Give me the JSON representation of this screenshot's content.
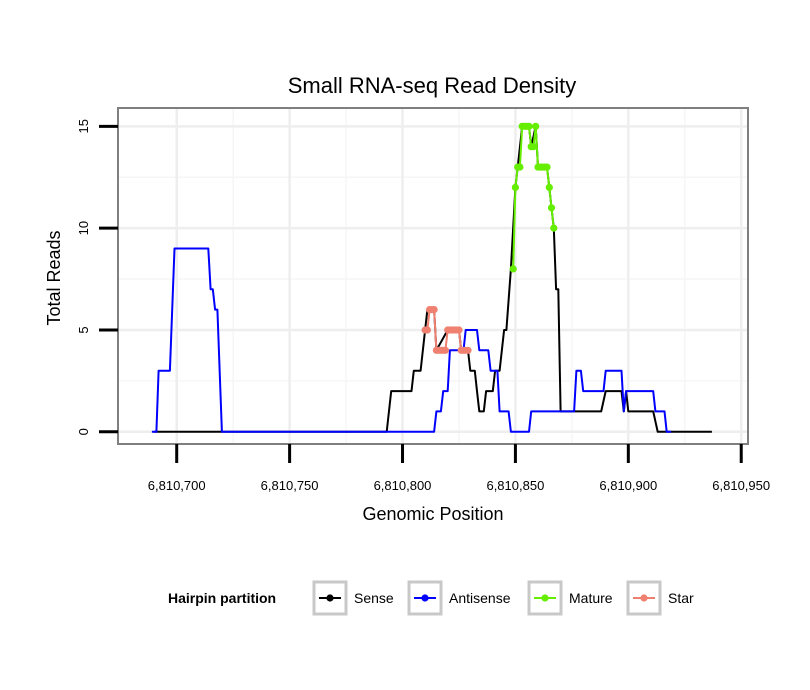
{
  "chart_data": {
    "type": "line",
    "title": "Small RNA-seq Read Density",
    "xlabel": "Genomic Position",
    "ylabel": "Total Reads",
    "xlim": [
      6810674,
      6810953
    ],
    "ylim": [
      -0.6,
      15.9
    ],
    "x_ticks": [
      6810700,
      6810750,
      6810800,
      6810850,
      6810900,
      6810950
    ],
    "x_tick_labels": [
      "6,810,700",
      "6,810,750",
      "6,810,800",
      "6,810,850",
      "6,810,900",
      "6,810,950"
    ],
    "y_ticks": [
      0,
      5,
      10,
      15
    ],
    "y_tick_labels": [
      "0",
      "5",
      "10",
      "15"
    ],
    "grid": true,
    "legend_title": "Hairpin partition",
    "legend_position": "bottom",
    "series": [
      {
        "name": "Sense",
        "color": "#000000",
        "markers": false,
        "points": [
          [
            6810690,
            0
          ],
          [
            6810793,
            0
          ],
          [
            6810795,
            2
          ],
          [
            6810804,
            2
          ],
          [
            6810805,
            3
          ],
          [
            6810808,
            3
          ],
          [
            6810810,
            5
          ],
          [
            6810811,
            6
          ],
          [
            6810814,
            6
          ],
          [
            6810815,
            4
          ],
          [
            6810820,
            5
          ],
          [
            6810825,
            5
          ],
          [
            6810826,
            4
          ],
          [
            6810829,
            4
          ],
          [
            6810830,
            3
          ],
          [
            6810832,
            3
          ],
          [
            6810833,
            2
          ],
          [
            6810834,
            1
          ],
          [
            6810836,
            1
          ],
          [
            6810837,
            2
          ],
          [
            6810840,
            2
          ],
          [
            6810841,
            3
          ],
          [
            6810843,
            3
          ],
          [
            6810845,
            5
          ],
          [
            6810846,
            5
          ],
          [
            6810848,
            8
          ],
          [
            6810850,
            12
          ],
          [
            6810851,
            13
          ],
          [
            6810853,
            15
          ],
          [
            6810856,
            15
          ],
          [
            6810857,
            14
          ],
          [
            6810859,
            15
          ],
          [
            6810860,
            13
          ],
          [
            6810864,
            13
          ],
          [
            6810865,
            12
          ],
          [
            6810866,
            11
          ],
          [
            6810867,
            10
          ],
          [
            6810868,
            7
          ],
          [
            6810869,
            7
          ],
          [
            6810870,
            1
          ],
          [
            6810888,
            1
          ],
          [
            6810890,
            2
          ],
          [
            6810897,
            2
          ],
          [
            6810898,
            1
          ],
          [
            6810899,
            2
          ],
          [
            6810900,
            1
          ],
          [
            6810911,
            1
          ],
          [
            6810913,
            0
          ],
          [
            6810937,
            0
          ]
        ]
      },
      {
        "name": "Antisense",
        "color": "#0000ff",
        "markers": false,
        "points": [
          [
            6810689,
            0
          ],
          [
            6810691,
            0
          ],
          [
            6810692,
            3
          ],
          [
            6810697,
            3
          ],
          [
            6810699,
            9
          ],
          [
            6810714,
            9
          ],
          [
            6810715,
            7
          ],
          [
            6810716,
            7
          ],
          [
            6810717,
            6
          ],
          [
            6810718,
            6
          ],
          [
            6810720,
            0
          ],
          [
            6810805,
            0
          ],
          [
            6810808,
            0
          ],
          [
            6810814,
            0
          ],
          [
            6810815,
            1
          ],
          [
            6810817,
            1
          ],
          [
            6810818,
            2
          ],
          [
            6810820,
            2
          ],
          [
            6810821,
            4
          ],
          [
            6810827,
            4
          ],
          [
            6810828,
            5
          ],
          [
            6810833,
            5
          ],
          [
            6810834,
            4
          ],
          [
            6810838,
            4
          ],
          [
            6810839,
            3
          ],
          [
            6810842,
            3
          ],
          [
            6810843,
            1
          ],
          [
            6810847,
            1
          ],
          [
            6810848,
            0
          ],
          [
            6810856,
            0
          ],
          [
            6810857,
            1
          ],
          [
            6810876,
            1
          ],
          [
            6810877,
            3
          ],
          [
            6810879,
            3
          ],
          [
            6810880,
            2
          ],
          [
            6810889,
            2
          ],
          [
            6810890,
            3
          ],
          [
            6810897,
            3
          ],
          [
            6810898,
            1
          ],
          [
            6810899,
            2
          ],
          [
            6810911,
            2
          ],
          [
            6810912,
            1
          ],
          [
            6810916,
            1
          ],
          [
            6810917,
            0
          ],
          [
            6810919,
            0
          ]
        ]
      },
      {
        "name": "Mature",
        "color": "#66ee00",
        "markers": true,
        "points": [
          [
            6810849,
            8
          ],
          [
            6810850,
            12
          ],
          [
            6810851,
            13
          ],
          [
            6810852,
            13
          ],
          [
            6810853,
            15
          ],
          [
            6810854,
            15
          ],
          [
            6810855,
            15
          ],
          [
            6810856,
            15
          ],
          [
            6810857,
            14
          ],
          [
            6810858,
            14
          ],
          [
            6810859,
            15
          ],
          [
            6810860,
            13
          ],
          [
            6810861,
            13
          ],
          [
            6810862,
            13
          ],
          [
            6810863,
            13
          ],
          [
            6810864,
            13
          ],
          [
            6810865,
            12
          ],
          [
            6810866,
            11
          ],
          [
            6810867,
            10
          ]
        ]
      },
      {
        "name": "Star",
        "color": "#f08070",
        "markers": true,
        "points": [
          [
            6810810,
            5
          ],
          [
            6810811,
            5
          ],
          [
            6810812,
            6
          ],
          [
            6810813,
            6
          ],
          [
            6810814,
            6
          ],
          [
            6810815,
            4
          ],
          [
            6810816,
            4
          ],
          [
            6810817,
            4
          ],
          [
            6810818,
            4
          ],
          [
            6810819,
            4
          ],
          [
            6810820,
            5
          ],
          [
            6810821,
            5
          ],
          [
            6810822,
            5
          ],
          [
            6810823,
            5
          ],
          [
            6810824,
            5
          ],
          [
            6810825,
            5
          ],
          [
            6810826,
            4
          ],
          [
            6810827,
            4
          ],
          [
            6810828,
            4
          ],
          [
            6810829,
            4
          ]
        ]
      }
    ]
  }
}
